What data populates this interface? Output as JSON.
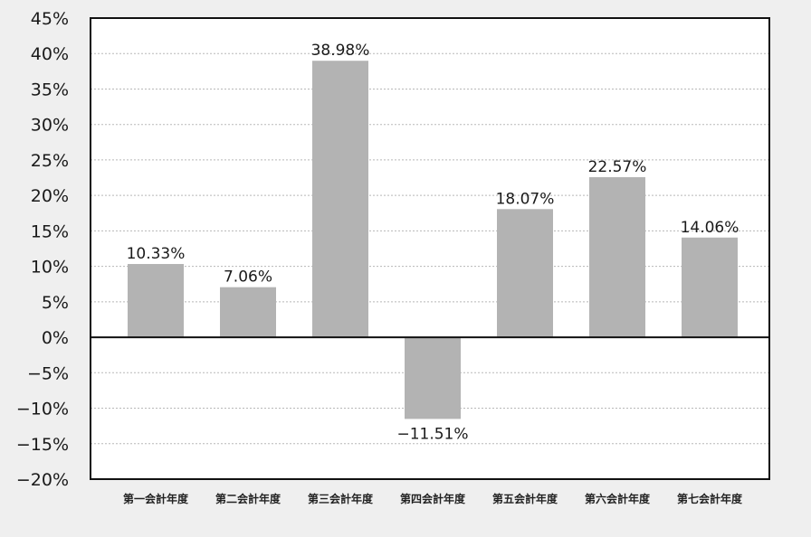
{
  "chart_data": {
    "type": "bar",
    "categories": [
      "第一会計年度",
      "第二会計年度",
      "第三会計年度",
      "第四会計年度",
      "第五会計年度",
      "第六会計年度",
      "第七会計年度"
    ],
    "values": [
      10.33,
      7.06,
      38.98,
      -11.51,
      18.07,
      22.57,
      14.06
    ],
    "data_labels": [
      "10.33%",
      "7.06%",
      "38.98%",
      "−11.51%",
      "18.07%",
      "22.57%",
      "14.06%"
    ],
    "y_ticks": [
      45,
      40,
      35,
      30,
      25,
      20,
      15,
      10,
      5,
      0,
      -5,
      -10,
      -15,
      -20
    ],
    "y_tick_labels": [
      "45%",
      "40%",
      "35%",
      "30%",
      "25%",
      "20%",
      "15%",
      "10%",
      "5%",
      "0%",
      "−5%",
      "−10%",
      "−15%",
      "−20%"
    ],
    "ylim": [
      -20,
      45
    ],
    "title": "",
    "xlabel": "",
    "ylabel": "",
    "grid": true,
    "legend": "none",
    "colors": {
      "bar": "#b3b3b3",
      "page_background": "#efefef",
      "plot_background": "#ffffff",
      "frame": "#111111",
      "zero_line": "#111111",
      "grid": "#b8b8b8"
    }
  }
}
